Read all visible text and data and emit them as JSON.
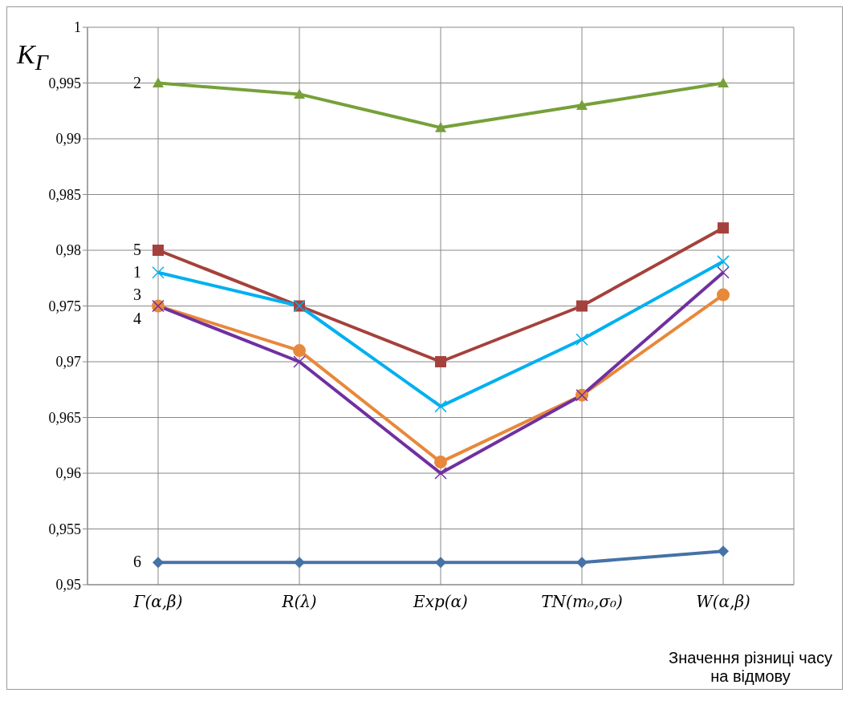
{
  "chart_data": {
    "type": "line",
    "ylabel": "K$_{Γ}$",
    "xlabel": "Значення різниці часу на відмову",
    "categories": [
      "Γ(α,β)",
      "R(λ)",
      "Exp(α)",
      "TN(m₀,σ₀)",
      "W(α,β)"
    ],
    "ylim": [
      0.95,
      1
    ],
    "yticks": [
      {
        "value": 0.95,
        "label": "0,95"
      },
      {
        "value": 0.955,
        "label": "0,955"
      },
      {
        "value": 0.96,
        "label": "0,96"
      },
      {
        "value": 0.965,
        "label": "0,965"
      },
      {
        "value": 0.97,
        "label": "0,97"
      },
      {
        "value": 0.975,
        "label": "0,975"
      },
      {
        "value": 0.98,
        "label": "0,98"
      },
      {
        "value": 0.985,
        "label": "0,985"
      },
      {
        "value": 0.99,
        "label": "0,99"
      },
      {
        "value": 0.995,
        "label": "0,995"
      },
      1
    ],
    "grid": true,
    "series": [
      {
        "name": "2",
        "color": "#77a03a",
        "marker": "triangle",
        "values": [
          0.995,
          0.994,
          0.991,
          0.993,
          0.995
        ]
      },
      {
        "name": "5",
        "color": "#a5413c",
        "marker": "square",
        "values": [
          0.98,
          0.975,
          0.97,
          0.975,
          0.982
        ]
      },
      {
        "name": "1",
        "color": "#00b0f0",
        "marker": "cross",
        "values": [
          0.978,
          0.975,
          0.966,
          0.972,
          0.979
        ]
      },
      {
        "name": "3",
        "color": "#e8883a",
        "marker": "circle",
        "values": [
          0.975,
          0.971,
          0.961,
          0.967,
          0.976
        ]
      },
      {
        "name": "4",
        "color": "#7030a0",
        "marker": "cross",
        "values": [
          0.975,
          0.97,
          0.96,
          0.967,
          0.978
        ]
      },
      {
        "name": "6",
        "color": "#4572a7",
        "marker": "diamond",
        "values": [
          0.952,
          0.952,
          0.952,
          0.952,
          0.953
        ]
      }
    ]
  }
}
